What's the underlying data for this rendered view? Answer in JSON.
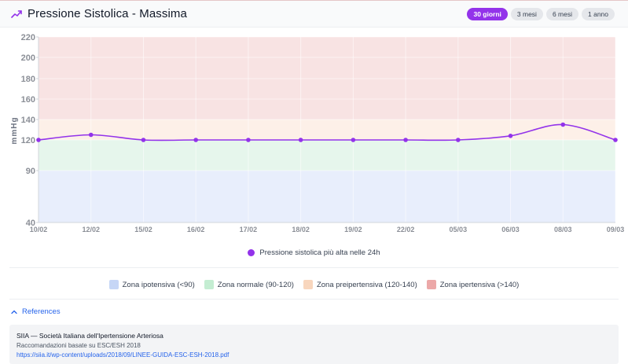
{
  "header": {
    "title": "Pressione Sistolica - Massima",
    "icon": "trending-up-icon",
    "accent": "#9333ea",
    "ranges": [
      {
        "label": "30 giorni",
        "active": true
      },
      {
        "label": "3 mesi",
        "active": false
      },
      {
        "label": "6 mesi",
        "active": false
      },
      {
        "label": "1 anno",
        "active": false
      }
    ]
  },
  "chart_data": {
    "type": "line",
    "ylabel": "mmHg",
    "yticks": [
      40,
      90,
      120,
      140,
      160,
      180,
      200,
      220
    ],
    "ylim": [
      40,
      220
    ],
    "x": [
      "10/02",
      "12/02",
      "15/02",
      "16/02",
      "17/02",
      "18/02",
      "19/02",
      "22/02",
      "05/03",
      "06/03",
      "08/03",
      "09/03"
    ],
    "series": [
      {
        "name": "Pressione sistolica più alta nelle 24h",
        "color": "#9333ea",
        "values": [
          120,
          125,
          120,
          120,
          120,
          120,
          120,
          120,
          120,
          124,
          135,
          120
        ]
      }
    ],
    "bands": [
      {
        "from": 40,
        "to": 90,
        "color": "#e8eefc"
      },
      {
        "from": 90,
        "to": 120,
        "color": "#e6f6ec"
      },
      {
        "from": 120,
        "to": 140,
        "color": "#fdf0e8"
      },
      {
        "from": 140,
        "to": 220,
        "color": "#f8e3e3"
      }
    ],
    "grid": true,
    "legend_position": "bottom"
  },
  "series_legend": {
    "label": "Pressione sistolica più alta nelle 24h"
  },
  "zones": [
    {
      "label": "Zona ipotensiva (<90)",
      "color": "#c6d6f6"
    },
    {
      "label": "Zona normale (90-120)",
      "color": "#c4edd2"
    },
    {
      "label": "Zona preipertensiva (120-140)",
      "color": "#f8d6bd"
    },
    {
      "label": "Zona ipertensiva (>140)",
      "color": "#eca8a8"
    }
  ],
  "references": {
    "toggle_label": "References",
    "items": [
      {
        "title": "SIIA — Società Italiana dell'Ipertensione Arteriosa",
        "subtitle": "Raccomandazioni basate su ESC/ESH 2018",
        "url": "https://siia.it/wp-content/uploads/2018/09/LINEE-GUIDA-ESC-ESH-2018.pdf"
      }
    ]
  }
}
